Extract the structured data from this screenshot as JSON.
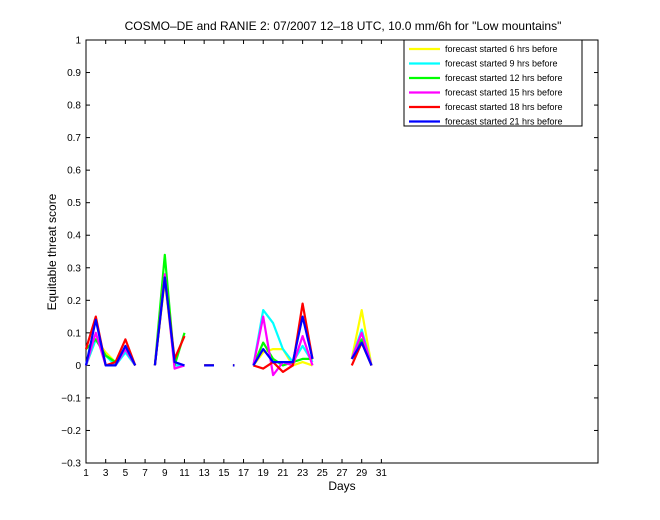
{
  "chart_data": {
    "type": "line",
    "title": "COSMO–DE and RANIE 2: 07/2007 12–18 UTC, 10.0 mm/6h for \"Low mountains\"",
    "xlabel": "Days",
    "ylabel": "Equitable threat score",
    "xlim": [
      1,
      53
    ],
    "ylim": [
      -0.3,
      1
    ],
    "xticks": [
      1,
      3,
      5,
      7,
      9,
      11,
      13,
      15,
      17,
      19,
      21,
      23,
      25,
      27,
      29,
      31
    ],
    "yticks": [
      -0.3,
      -0.2,
      -0.1,
      0,
      0.1,
      0.2,
      0.3,
      0.4,
      0.5,
      0.6,
      0.7,
      0.8,
      0.9,
      1
    ],
    "ytick_labels": [
      "−0.3",
      "−0.2",
      "−0.1",
      "0",
      "0.1",
      "0.2",
      "0.3",
      "0.4",
      "0.5",
      "0.6",
      "0.7",
      "0.8",
      "0.9",
      "1"
    ],
    "grid": false,
    "legend_position": "top-right",
    "x": [
      1,
      2,
      3,
      4,
      5,
      6,
      7,
      8,
      9,
      10,
      11,
      12,
      13,
      14,
      15,
      16,
      17,
      18,
      19,
      20,
      21,
      22,
      23,
      24,
      25,
      26,
      27,
      28,
      29,
      30,
      31
    ],
    "series": [
      {
        "name": "forecast started 6 hrs before",
        "color": "#ffff00",
        "values": [
          0.0,
          0.08,
          0.04,
          0.01,
          0.05,
          0.0,
          null,
          0.0,
          0.26,
          0.0,
          0.0,
          null,
          0.0,
          0.0,
          null,
          0.0,
          null,
          0.0,
          0.04,
          0.05,
          0.05,
          0.0,
          0.01,
          0.0,
          null,
          null,
          null,
          0.02,
          0.17,
          0.0,
          null
        ]
      },
      {
        "name": "forecast started 9 hrs before",
        "color": "#00ffff",
        "values": [
          0.0,
          0.08,
          0.03,
          0.0,
          0.04,
          0.0,
          null,
          0.0,
          0.28,
          0.0,
          0.0,
          null,
          0.0,
          0.0,
          null,
          0.0,
          null,
          0.0,
          0.17,
          0.13,
          0.05,
          0.01,
          0.06,
          0.01,
          null,
          null,
          null,
          0.02,
          0.11,
          0.0,
          null
        ]
      },
      {
        "name": "forecast started 12 hrs before",
        "color": "#00ff00",
        "values": [
          0.05,
          0.08,
          0.03,
          0.01,
          0.05,
          0.0,
          null,
          0.0,
          0.34,
          0.0,
          0.1,
          null,
          0.0,
          0.0,
          null,
          0.0,
          null,
          0.0,
          0.07,
          0.02,
          0.0,
          0.01,
          0.02,
          0.02,
          null,
          null,
          null,
          0.02,
          0.08,
          0.0,
          null
        ]
      },
      {
        "name": "forecast started 15 hrs before",
        "color": "#ff00ff",
        "values": [
          0.0,
          0.1,
          0.0,
          0.0,
          0.05,
          0.0,
          null,
          0.0,
          0.28,
          -0.01,
          0.0,
          null,
          0.0,
          0.0,
          null,
          0.0,
          null,
          0.0,
          0.15,
          -0.03,
          0.01,
          0.0,
          0.09,
          0.0,
          null,
          null,
          null,
          0.02,
          0.1,
          0.0,
          null
        ]
      },
      {
        "name": "forecast started 18 hrs before",
        "color": "#ff0000",
        "values": [
          0.05,
          0.15,
          0.0,
          0.01,
          0.08,
          0.0,
          null,
          0.0,
          0.27,
          0.02,
          0.09,
          null,
          0.0,
          0.0,
          null,
          0.0,
          null,
          0.0,
          -0.01,
          0.01,
          -0.02,
          0.0,
          0.19,
          0.02,
          null,
          null,
          null,
          0.0,
          0.07,
          0.0,
          null
        ]
      },
      {
        "name": "forecast started 21 hrs before",
        "color": "#0000ff",
        "values": [
          0.0,
          0.14,
          0.0,
          0.0,
          0.06,
          0.0,
          null,
          0.0,
          0.27,
          0.01,
          0.0,
          null,
          0.0,
          0.0,
          null,
          0.0,
          null,
          0.0,
          0.05,
          0.01,
          0.01,
          0.01,
          0.15,
          0.02,
          null,
          null,
          null,
          0.02,
          0.07,
          0.0,
          null
        ]
      }
    ]
  }
}
